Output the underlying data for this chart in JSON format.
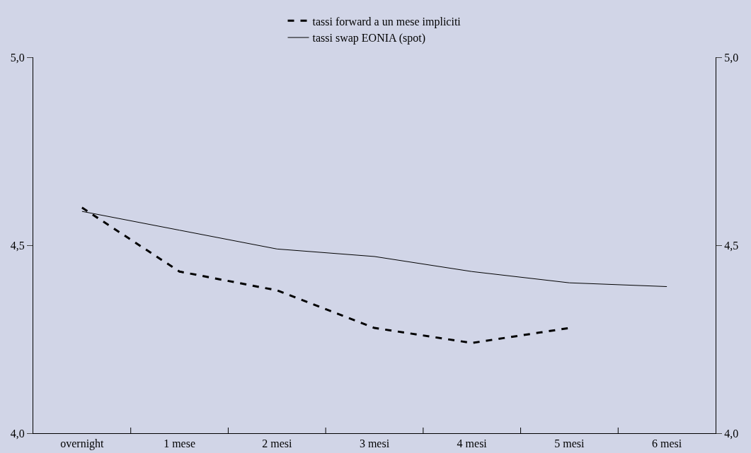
{
  "chart_data": {
    "type": "line",
    "categories": [
      "overnight",
      "1 mese",
      "2 mesi",
      "3 mesi",
      "4 mesi",
      "5 mesi",
      "6 mesi"
    ],
    "series": [
      {
        "name": "tassi forward a un mese impliciti",
        "color": "#000000",
        "line_style": "dashed",
        "values": [
          4.6,
          4.43,
          4.38,
          4.28,
          4.24,
          4.28,
          null
        ]
      },
      {
        "name": "tassi swap EONIA (spot)",
        "color": "#000000",
        "line_style": "solid",
        "values": [
          4.59,
          4.54,
          4.49,
          4.47,
          4.43,
          4.4,
          4.39
        ]
      }
    ],
    "ylim": [
      4.0,
      5.0
    ],
    "yticks": [
      {
        "value": 4.0,
        "label": "4,0"
      },
      {
        "value": 4.5,
        "label": "4,5"
      },
      {
        "value": 5.0,
        "label": "5,0"
      }
    ],
    "y2lim": [
      4.0,
      5.0
    ],
    "y2ticks": [
      {
        "value": 4.0,
        "label": "4,0"
      },
      {
        "value": 4.5,
        "label": "4,5"
      },
      {
        "value": 5.0,
        "label": "5,0"
      }
    ],
    "grid": false,
    "legend": "top",
    "marker": "none"
  }
}
